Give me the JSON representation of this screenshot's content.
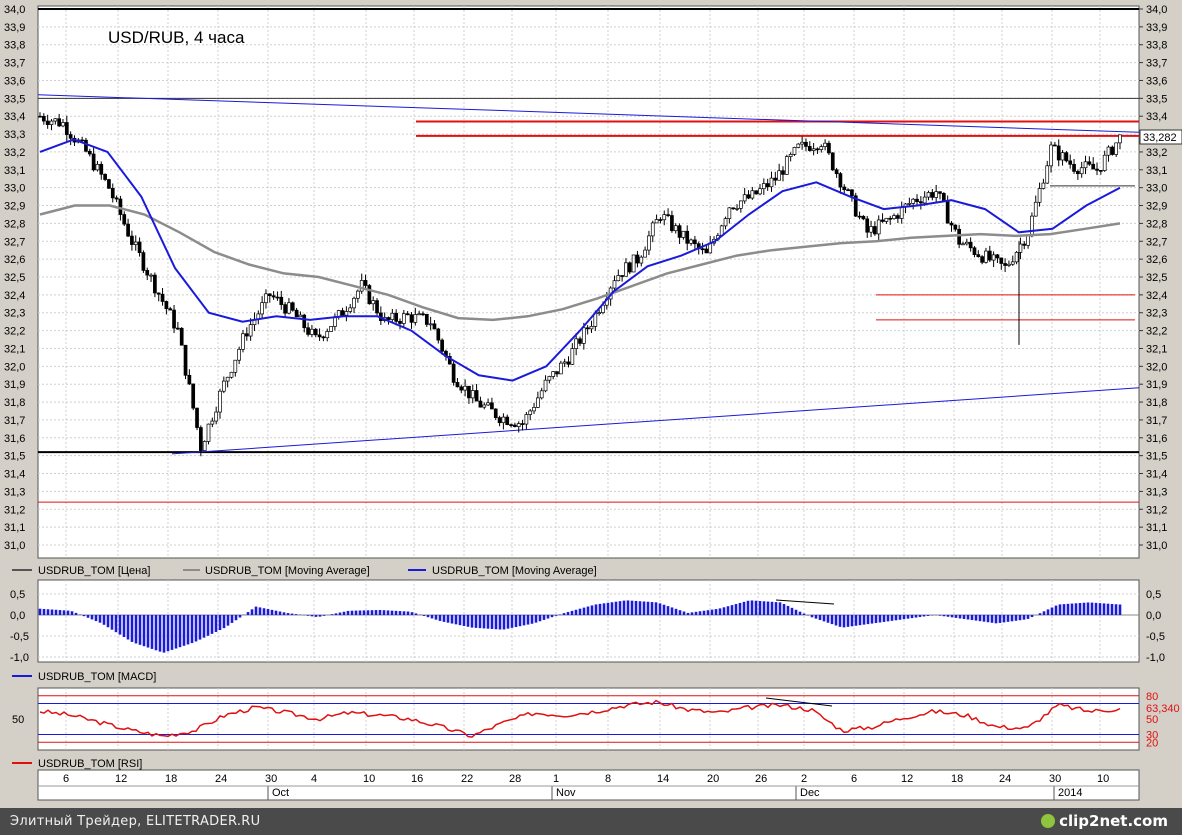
{
  "title": "USD/RUB, 4 часа",
  "price_axis": {
    "labels": [
      "34,0",
      "33,9",
      "33,8",
      "33,7",
      "33,6",
      "33,5",
      "33,4",
      "33,3",
      "33,2",
      "33,1",
      "33,0",
      "32,9",
      "32,8",
      "32,7",
      "32,6",
      "32,5",
      "32,4",
      "32,3",
      "32,2",
      "32,1",
      "32,0",
      "31,9",
      "31,8",
      "31,7",
      "31,6",
      "31,5",
      "31,4",
      "31,3",
      "31,2",
      "31,1",
      "31,0"
    ],
    "last_price_label": "33,282"
  },
  "macd_axis": {
    "labels": [
      "0,5",
      "0,0",
      "-0,5",
      "-1,0"
    ]
  },
  "rsi_axis": {
    "left_label": "50",
    "right_labels": [
      "80",
      "50",
      "30",
      "20"
    ],
    "last_value_label": "63,340"
  },
  "legend_main": [
    {
      "label": "USDRUB_TOM [Цена]",
      "color": "#555555"
    },
    {
      "label": "USDRUB_TOM [Moving Average]",
      "color": "#8c8c8c"
    },
    {
      "label": "USDRUB_TOM [Moving Average]",
      "color": "#1a1adc"
    }
  ],
  "legend_macd": {
    "label": "USDRUB_TOM [MACD]",
    "color": "#1a1adc"
  },
  "legend_rsi": {
    "label": "USDRUB_TOM [RSI]",
    "color": "#e01010"
  },
  "date_axis": {
    "days": [
      "6",
      "12",
      "18",
      "24",
      "30",
      "4",
      "10",
      "16",
      "22",
      "28",
      "1",
      "8",
      "14",
      "20",
      "26",
      "2",
      "6",
      "12",
      "18",
      "24",
      "30",
      "10"
    ],
    "months": [
      "Oct",
      "Nov",
      "Dec",
      "2014"
    ]
  },
  "footer": {
    "text": "Элитный Трейдер, ELITETRADER.RU",
    "logo": "clip2net.com"
  },
  "colors": {
    "price": "#000000",
    "ma_fast": "#1a1adc",
    "ma_slow": "#8c8c8c",
    "levels": "#e01010",
    "trend": "#1a1adc",
    "rsi": "#e01010",
    "macd": "#1a1adc"
  },
  "chart_data": {
    "type": "line",
    "title": "USD/RUB, 4 часа",
    "ylim": [
      31.0,
      34.0
    ],
    "x_ticks": [
      "6",
      "12",
      "18",
      "24",
      "30",
      "4",
      "10",
      "16",
      "22",
      "28",
      "1",
      "8",
      "14",
      "20",
      "26",
      "2",
      "6",
      "12",
      "18",
      "24",
      "30",
      "10"
    ],
    "series": [
      {
        "name": "USDRUB_TOM [Цена]",
        "values": [
          33.4,
          33.36,
          33.2,
          33.0,
          32.7,
          32.45,
          32.2,
          31.55,
          31.9,
          32.2,
          32.4,
          32.3,
          32.15,
          32.28,
          32.45,
          32.25,
          32.28,
          32.25,
          31.95,
          31.8,
          31.72,
          31.68,
          31.9,
          32.05,
          32.25,
          32.5,
          32.6,
          32.85,
          32.72,
          32.62,
          32.9,
          32.95,
          33.05,
          33.22,
          33.26,
          33.0,
          32.75,
          32.82,
          32.93,
          32.98,
          32.7,
          32.62,
          32.55,
          32.75,
          33.22,
          33.12,
          33.1,
          33.28
        ]
      },
      {
        "name": "USDRUB_TOM [Moving Average]",
        "values": [
          32.85,
          32.9,
          32.9,
          32.85,
          32.75,
          32.64,
          32.57,
          32.52,
          32.5,
          32.45,
          32.4,
          32.33,
          32.27,
          32.26,
          32.28,
          32.32,
          32.38,
          32.45,
          32.52,
          32.57,
          32.62,
          32.65,
          32.67,
          32.69,
          32.7,
          32.72,
          32.73,
          32.74,
          32.73,
          32.74,
          32.77,
          32.8
        ]
      },
      {
        "name": "USDRUB_TOM [Moving Average]",
        "values": [
          33.2,
          33.27,
          33.2,
          32.95,
          32.55,
          32.3,
          32.25,
          32.28,
          32.26,
          32.28,
          32.28,
          32.2,
          32.06,
          31.95,
          31.92,
          32.0,
          32.2,
          32.42,
          32.56,
          32.62,
          32.7,
          32.85,
          32.98,
          33.03,
          32.95,
          32.88,
          32.9,
          32.93,
          32.88,
          32.75,
          32.77,
          32.9,
          33.0
        ]
      }
    ],
    "levels": [
      33.5,
      33.37,
      33.29,
      33.01,
      32.4,
      32.26,
      31.52,
      31.24
    ],
    "macd": [
      0.15,
      0.1,
      -0.2,
      -0.65,
      -0.9,
      -0.65,
      -0.3,
      0.2,
      0.05,
      -0.05,
      0.1,
      0.12,
      0.08,
      -0.15,
      -0.3,
      -0.35,
      -0.2,
      0.05,
      0.25,
      0.35,
      0.3,
      0.05,
      0.15,
      0.35,
      0.3,
      -0.05,
      -0.3,
      -0.2,
      -0.1,
      0.0,
      -0.1,
      -0.2,
      -0.1,
      0.25,
      0.3,
      0.25
    ],
    "rsi": [
      60,
      55,
      45,
      35,
      28,
      35,
      55,
      65,
      58,
      50,
      58,
      55,
      50,
      40,
      28,
      45,
      58,
      55,
      60,
      68,
      72,
      62,
      58,
      65,
      68,
      62,
      35,
      40,
      52,
      60,
      55,
      40,
      38,
      68,
      60,
      63
    ]
  }
}
